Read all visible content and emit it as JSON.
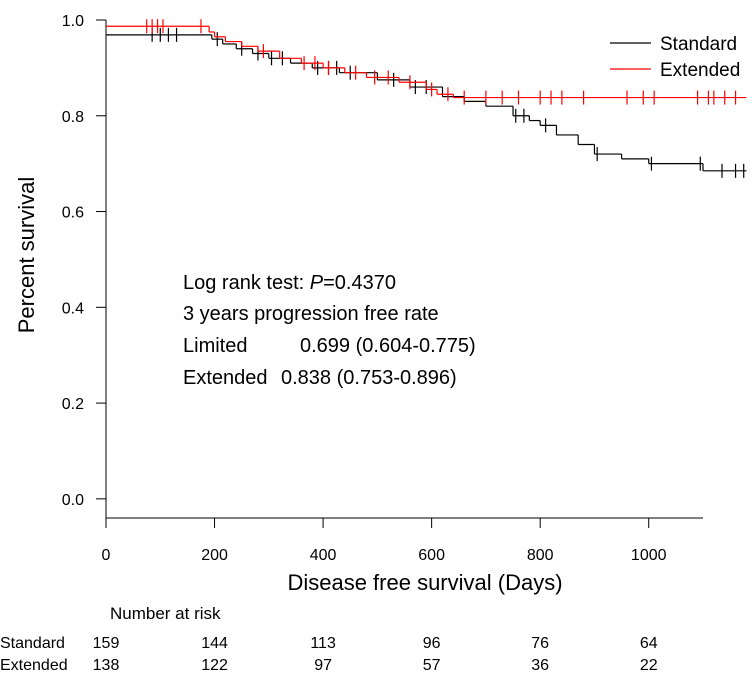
{
  "chart_data": {
    "type": "km",
    "ylabel": "Percent survival",
    "xlabel": "Disease free survival (Days)",
    "xlim": [
      0,
      1100
    ],
    "ylim": [
      -0.04,
      1.0
    ],
    "xticks": [
      0,
      200,
      400,
      600,
      800,
      1000
    ],
    "yticks": [
      {
        "value": 0,
        "label": "0.0"
      },
      0.2,
      0.4,
      0.6,
      0.8,
      {
        "value": 1,
        "label": "1.0"
      }
    ],
    "legend": "top-right",
    "series": [
      {
        "name": "Standard",
        "color": "#000000",
        "x": [
          0,
          195,
          215,
          240,
          270,
          300,
          340,
          380,
          430,
          500,
          560,
          620,
          660,
          700,
          750,
          780,
          800,
          830,
          870,
          900,
          950,
          1000,
          1100,
          1180
        ],
        "values": [
          0.969,
          0.96,
          0.95,
          0.94,
          0.93,
          0.92,
          0.91,
          0.9,
          0.89,
          0.875,
          0.86,
          0.84,
          0.83,
          0.82,
          0.8,
          0.79,
          0.78,
          0.76,
          0.74,
          0.72,
          0.71,
          0.7,
          0.685,
          0.685
        ],
        "censored_x": [
          85,
          100,
          115,
          130,
          205,
          250,
          280,
          305,
          325,
          390,
          410,
          425,
          450,
          530,
          570,
          590,
          755,
          770,
          810,
          905,
          1005,
          1095,
          1135,
          1160,
          1175
        ]
      },
      {
        "name": "Extended",
        "color": "#ff0000",
        "x": [
          0,
          190,
          200,
          220,
          250,
          280,
          320,
          360,
          400,
          440,
          480,
          540,
          590,
          610,
          640,
          1180
        ],
        "values": [
          0.987,
          0.975,
          0.965,
          0.955,
          0.945,
          0.935,
          0.92,
          0.91,
          0.9,
          0.89,
          0.88,
          0.87,
          0.855,
          0.845,
          0.838,
          0.838
        ],
        "censored_x": [
          75,
          85,
          95,
          105,
          175,
          290,
          365,
          385,
          410,
          460,
          495,
          520,
          560,
          600,
          630,
          660,
          700,
          730,
          760,
          800,
          820,
          840,
          880,
          960,
          990,
          1010,
          1090,
          1110,
          1120,
          1140,
          1160
        ]
      }
    ],
    "annotation": {
      "prefix": "Log rank test: ",
      "italic": "P",
      "suffix": "=0.4370",
      "subtitle": "3 years progression free rate",
      "rows": [
        [
          "Limited",
          "0.699 (0.604-0.775)"
        ],
        [
          "Extended",
          "0.838 (0.753-0.896)"
        ]
      ]
    },
    "risk_table": {
      "title": "Number at risk",
      "rows": [
        {
          "name": "Standard",
          "counts": [
            159,
            144,
            113,
            96,
            76,
            64
          ]
        },
        {
          "name": "Extended",
          "counts": [
            138,
            122,
            97,
            57,
            36,
            22
          ]
        }
      ]
    }
  }
}
